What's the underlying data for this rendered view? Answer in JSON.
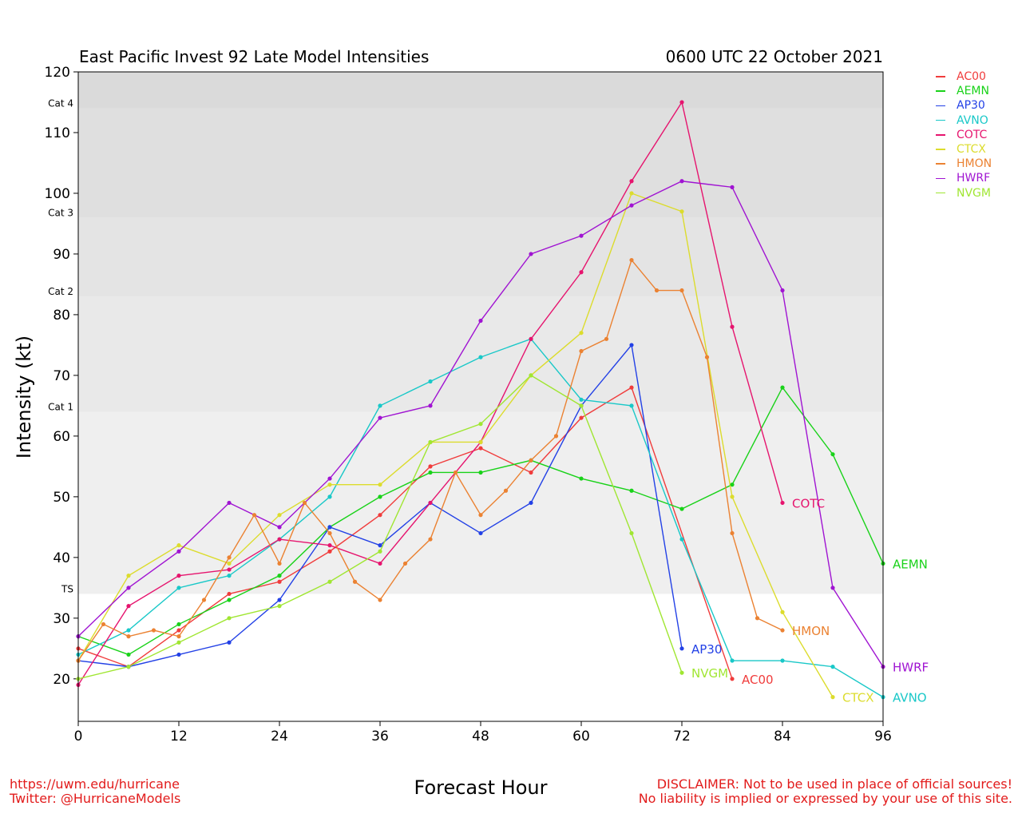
{
  "title_left": "East Pacific Invest 92 Late Model Intensities",
  "title_right": "0600 UTC 22 October 2021",
  "footer": {
    "url": "https://uwm.edu/hurricane",
    "twitter": "Twitter: @HurricaneModels",
    "disclaimer1": "DISCLAIMER: Not to be used in place of official sources!",
    "disclaimer2": "No liability is implied or expressed by your use of this site."
  },
  "chart_data": {
    "type": "line",
    "xlabel": "Forecast Hour",
    "ylabel": "Intensity (kt)",
    "xlim": [
      0,
      96
    ],
    "ylim": [
      13,
      120
    ],
    "xticks": [
      0,
      12,
      24,
      36,
      48,
      60,
      72,
      84,
      96
    ],
    "yticks": [
      20,
      30,
      40,
      50,
      60,
      70,
      80,
      90,
      100,
      110,
      120
    ],
    "bands": [
      {
        "label": "TS",
        "from": 34,
        "to": 64,
        "color": "#efefef"
      },
      {
        "label": "Cat 1",
        "from": 64,
        "to": 83,
        "color": "#e9e9e9"
      },
      {
        "label": "Cat 2",
        "from": 83,
        "to": 96,
        "color": "#e4e4e4"
      },
      {
        "label": "Cat 3",
        "from": 96,
        "to": 114,
        "color": "#dfdfdf"
      },
      {
        "label": "Cat 4",
        "from": 114,
        "to": 120,
        "color": "#dadada"
      }
    ],
    "series": [
      {
        "name": "AC00",
        "color": "#f03c3c",
        "end_label": true,
        "x": [
          0,
          6,
          12,
          18,
          24,
          30,
          36,
          42,
          48,
          54,
          60,
          66,
          78
        ],
        "y": [
          25,
          22,
          28,
          34,
          36,
          41,
          47,
          55,
          58,
          54,
          63,
          68,
          20
        ]
      },
      {
        "name": "AEMN",
        "color": "#19d219",
        "end_label": true,
        "x": [
          0,
          6,
          12,
          18,
          24,
          30,
          36,
          42,
          48,
          54,
          60,
          66,
          72,
          78,
          84,
          90,
          96
        ],
        "y": [
          27,
          24,
          29,
          33,
          37,
          45,
          50,
          54,
          54,
          56,
          53,
          51,
          48,
          52,
          68,
          57,
          39
        ]
      },
      {
        "name": "AP30",
        "color": "#2341e6",
        "end_label": true,
        "x": [
          0,
          6,
          12,
          18,
          24,
          30,
          36,
          42,
          48,
          54,
          60,
          66,
          72
        ],
        "y": [
          23,
          22,
          24,
          26,
          33,
          45,
          42,
          49,
          44,
          49,
          65,
          75,
          25
        ]
      },
      {
        "name": "AVNO",
        "color": "#19c8c8",
        "end_label": true,
        "x": [
          0,
          6,
          12,
          18,
          24,
          30,
          36,
          42,
          48,
          54,
          60,
          66,
          72,
          78,
          84,
          90,
          96
        ],
        "y": [
          24,
          28,
          35,
          37,
          43,
          50,
          65,
          69,
          73,
          76,
          66,
          65,
          43,
          23,
          23,
          22,
          17
        ]
      },
      {
        "name": "COTC",
        "color": "#e6146e",
        "end_label": true,
        "x": [
          0,
          6,
          12,
          18,
          24,
          30,
          36,
          42,
          48,
          54,
          60,
          66,
          72,
          78,
          84
        ],
        "y": [
          19,
          32,
          37,
          38,
          43,
          42,
          39,
          49,
          59,
          76,
          87,
          102,
          115,
          78,
          49
        ]
      },
      {
        "name": "CTCX",
        "color": "#dcdc2d",
        "end_label": true,
        "x": [
          0,
          6,
          12,
          18,
          24,
          30,
          36,
          42,
          48,
          54,
          60,
          66,
          72,
          78,
          84,
          90
        ],
        "y": [
          23,
          37,
          42,
          39,
          47,
          52,
          52,
          59,
          59,
          70,
          77,
          100,
          97,
          50,
          31,
          17
        ]
      },
      {
        "name": "HMON",
        "color": "#eb8232",
        "end_label": true,
        "x": [
          0,
          3,
          6,
          9,
          12,
          15,
          18,
          21,
          24,
          27,
          30,
          33,
          36,
          39,
          42,
          45,
          48,
          51,
          54,
          57,
          60,
          63,
          66,
          69,
          72,
          75,
          78,
          81,
          84
        ],
        "y": [
          23,
          29,
          27,
          28,
          27,
          33,
          40,
          47,
          39,
          49,
          44,
          36,
          33,
          39,
          43,
          54,
          47,
          51,
          56,
          60,
          74,
          76,
          89,
          84,
          84,
          73,
          44,
          30,
          28
        ]
      },
      {
        "name": "HWRF",
        "color": "#a014d2",
        "end_label": true,
        "x": [
          0,
          6,
          12,
          18,
          24,
          30,
          36,
          42,
          48,
          54,
          60,
          66,
          72,
          78,
          84,
          90,
          96
        ],
        "y": [
          27,
          35,
          41,
          49,
          45,
          53,
          63,
          65,
          79,
          90,
          93,
          98,
          102,
          101,
          84,
          35,
          22
        ]
      },
      {
        "name": "NVGM",
        "color": "#a0e632",
        "end_label": true,
        "x": [
          0,
          6,
          12,
          18,
          24,
          30,
          36,
          42,
          48,
          54,
          60,
          66,
          72
        ],
        "y": [
          20,
          22,
          26,
          30,
          32,
          36,
          41,
          59,
          62,
          70,
          65,
          44,
          21
        ]
      }
    ]
  }
}
